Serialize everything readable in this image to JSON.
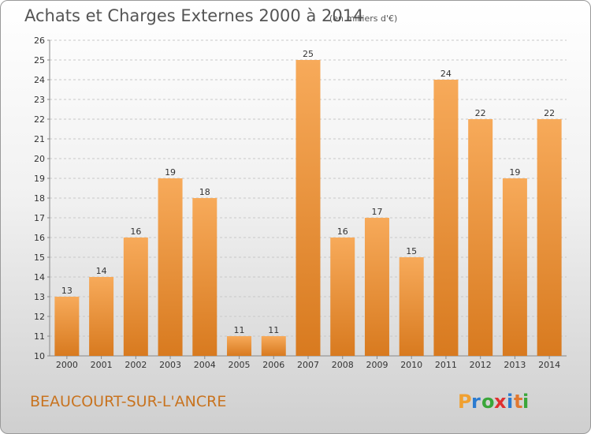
{
  "title": "Achats et Charges Externes 2000 à 2014",
  "subtitle": "(en milliers d'€)",
  "commune": "BEAUCOURT-SUR-L'ANCRE",
  "brand": "Proxiti",
  "colors": {
    "bar_light": "#f7aa5a",
    "bar_dark": "#d87a1f",
    "commune_text": "#c8731f",
    "logo": [
      "#f0a030",
      "#2b7bd0",
      "#3aa63a",
      "#e03030",
      "#2b7bd0",
      "#e07830",
      "#3aa63a"
    ]
  },
  "chart_data": {
    "type": "bar",
    "categories": [
      "2000",
      "2001",
      "2002",
      "2003",
      "2004",
      "2005",
      "2006",
      "2007",
      "2008",
      "2009",
      "2010",
      "2011",
      "2012",
      "2013",
      "2014"
    ],
    "values": [
      13,
      14,
      16,
      19,
      18,
      11,
      11,
      25,
      16,
      17,
      15,
      24,
      22,
      19,
      22
    ],
    "ylim": [
      10,
      26
    ],
    "yticks": [
      10,
      11,
      12,
      13,
      14,
      15,
      16,
      17,
      18,
      19,
      20,
      21,
      22,
      23,
      24,
      25,
      26
    ],
    "grid": "horizontal dashed",
    "xlabel": "",
    "ylabel": ""
  }
}
